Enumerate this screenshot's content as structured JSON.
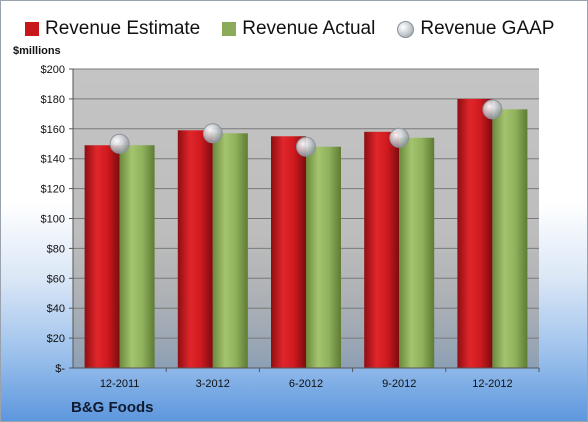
{
  "legend": {
    "estimate_label": "Revenue Estimate",
    "actual_label": "Revenue Actual",
    "gaap_label": "Revenue GAAP"
  },
  "unit_label": "$millions",
  "company": "B&G Foods",
  "colors": {
    "estimate": "#c8171b",
    "actual": "#8bab5a",
    "gaap": "#c5cad0",
    "plot_bg": "#c8c8c8",
    "grid": "#7a7a7a"
  },
  "chart_data": {
    "type": "bar",
    "title": "",
    "xlabel": "",
    "ylabel": "$millions",
    "ylim": [
      0,
      200
    ],
    "y_ticks": [
      0,
      20,
      40,
      60,
      80,
      100,
      120,
      140,
      160,
      180,
      200
    ],
    "y_tick_labels": [
      "$-",
      "$20",
      "$40",
      "$60",
      "$80",
      "$100",
      "$120",
      "$140",
      "$160",
      "$180",
      "$200"
    ],
    "categories": [
      "12-2011",
      "3-2012",
      "6-2012",
      "9-2012",
      "12-2012"
    ],
    "series": [
      {
        "name": "Revenue Estimate",
        "type": "bar",
        "values": [
          149,
          159,
          155,
          158,
          180
        ]
      },
      {
        "name": "Revenue Actual",
        "type": "bar",
        "values": [
          149,
          157,
          148,
          154,
          173
        ]
      },
      {
        "name": "Revenue GAAP",
        "type": "marker",
        "values": [
          150,
          157,
          148,
          154,
          173
        ]
      }
    ],
    "grid": true,
    "legend_position": "top"
  }
}
